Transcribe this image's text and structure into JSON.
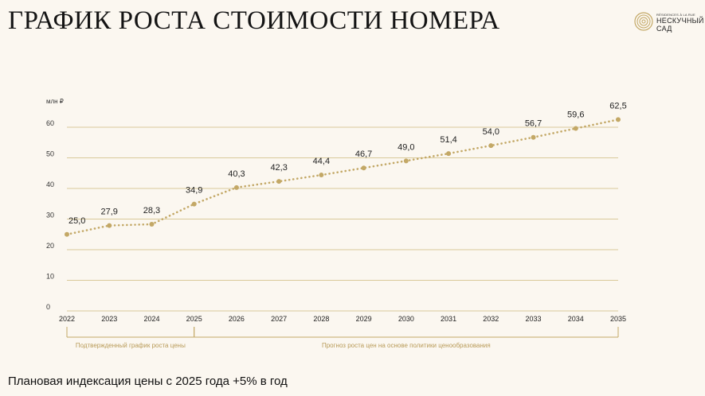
{
  "header": {
    "title": "ГРАФИК РОСТА СТОИМОСТИ НОМЕРА"
  },
  "logo": {
    "small_text": "RÉSIDENCES À LA RUE",
    "line1": "НЕСКУЧНЫЙ",
    "line2": "САД",
    "icon": "spiral-circle-icon"
  },
  "footer": {
    "note": "Плановая индексация цены с 2025 года +5% в год"
  },
  "colors": {
    "accent": "#c3a866",
    "grid": "#d9c99a",
    "background": "#fbf7f0"
  },
  "chart_data": {
    "type": "line",
    "ylabel": "млн ₽",
    "ylim": [
      0,
      60
    ],
    "yticks": [
      0,
      10,
      20,
      30,
      40,
      50,
      60
    ],
    "ytick_labels": [
      "0",
      "10",
      "20",
      "30",
      "40",
      "50",
      "60"
    ],
    "grid": true,
    "line_style": "dotted",
    "x": [
      "2022",
      "2023",
      "2024",
      "2025",
      "2026",
      "2027",
      "2028",
      "2029",
      "2030",
      "2031",
      "2032",
      "2033",
      "2034",
      "2035"
    ],
    "values": [
      25.0,
      27.9,
      28.3,
      34.9,
      40.3,
      42.3,
      44.4,
      46.7,
      49.0,
      51.4,
      54.0,
      56.7,
      59.6,
      62.5
    ],
    "value_labels": [
      "25,0",
      "27,9",
      "28,3",
      "34,9",
      "40,3",
      "42,3",
      "44,4",
      "46,7",
      "49,0",
      "51,4",
      "54,0",
      "56,7",
      "59,6",
      "62,5"
    ],
    "periods": [
      {
        "label": "Подтвержденный график роста цены",
        "from": "2022",
        "to": "2025"
      },
      {
        "label": "Прогноз роста цен на основе политики ценообразования",
        "from": "2025",
        "to": "2035"
      }
    ]
  }
}
